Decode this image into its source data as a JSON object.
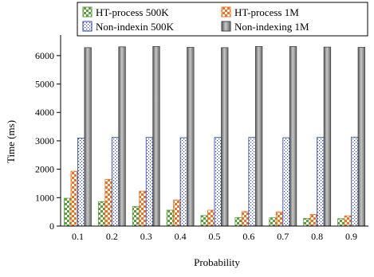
{
  "chart_data": {
    "type": "bar",
    "title": "",
    "xlabel": "Probability",
    "ylabel": "Time (ms)",
    "ylim": [
      0,
      6500
    ],
    "yticks": [
      0,
      1000,
      2000,
      3000,
      4000,
      5000,
      6000
    ],
    "grid": false,
    "legend_placement": "top",
    "categories": [
      "0.1",
      "0.2",
      "0.3",
      "0.4",
      "0.5",
      "0.6",
      "0.7",
      "0.8",
      "0.9"
    ],
    "series": [
      {
        "name": "HT-process 500K",
        "color": "#5a9e3c",
        "pattern": "green-checker",
        "values": [
          980,
          860,
          690,
          560,
          370,
          300,
          290,
          270,
          260
        ]
      },
      {
        "name": "HT-process 1M",
        "color": "#f07020",
        "pattern": "orange-checker",
        "values": [
          1930,
          1640,
          1230,
          920,
          560,
          510,
          500,
          410,
          360
        ]
      },
      {
        "name": "Non-indexin 500K",
        "color": "#2a3fb0",
        "pattern": "blue-dotted",
        "values": [
          3100,
          3120,
          3120,
          3110,
          3120,
          3120,
          3110,
          3120,
          3130
        ]
      },
      {
        "name": "Non-indexing 1M",
        "color": "#808080",
        "pattern": "gray-gradient",
        "values": [
          6280,
          6310,
          6320,
          6290,
          6280,
          6320,
          6320,
          6300,
          6290
        ]
      }
    ]
  }
}
